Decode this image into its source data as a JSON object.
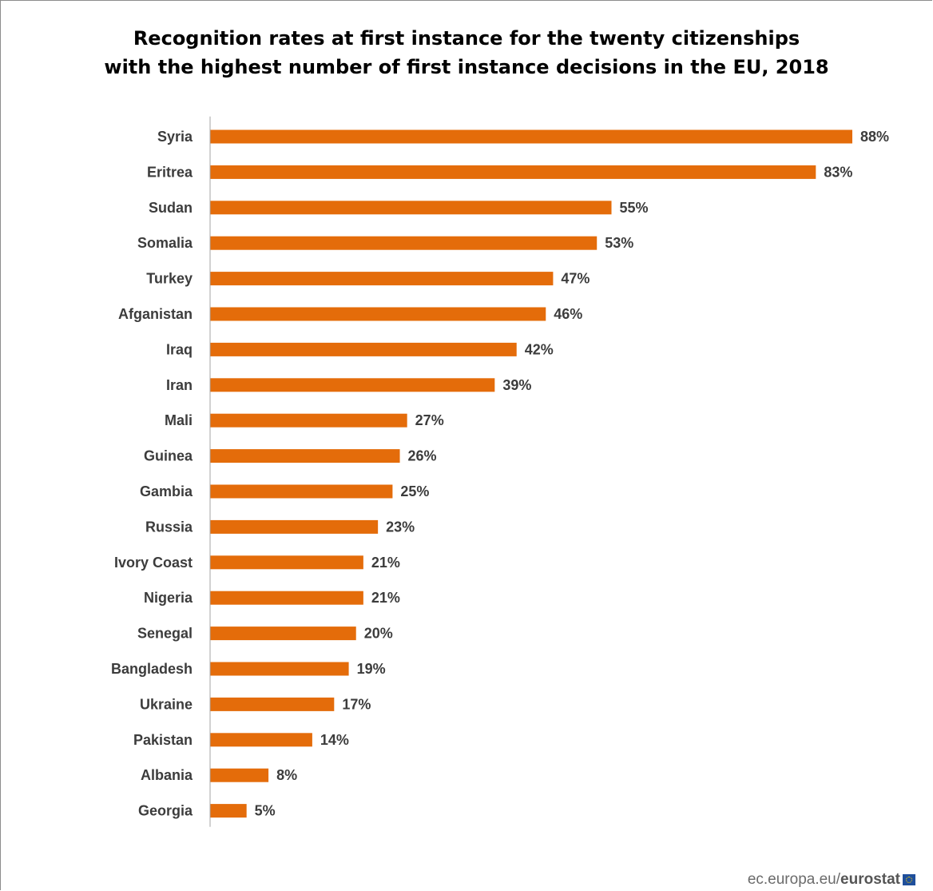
{
  "chart_data": {
    "type": "bar",
    "orientation": "horizontal",
    "title_lines": [
      "Recognition rates at first instance for the twenty citizenships",
      "with the highest number of first instance decisions in the EU, 2018"
    ],
    "categories": [
      "Syria",
      "Eritrea",
      "Sudan",
      "Somalia",
      "Turkey",
      "Afganistan",
      "Iraq",
      "Iran",
      "Mali",
      "Guinea",
      "Gambia",
      "Russia",
      "Ivory Coast",
      "Nigeria",
      "Senegal",
      "Bangladesh",
      "Ukraine",
      "Pakistan",
      "Albania",
      "Georgia"
    ],
    "values": [
      88,
      83,
      55,
      53,
      47,
      46,
      42,
      39,
      27,
      26,
      25,
      23,
      21,
      21,
      20,
      19,
      17,
      14,
      8,
      5
    ],
    "value_labels": [
      "88%",
      "83%",
      "55%",
      "53%",
      "47%",
      "46%",
      "42%",
      "39%",
      "27%",
      "26%",
      "25%",
      "23%",
      "21%",
      "21%",
      "20%",
      "19%",
      "17%",
      "14%",
      "8%",
      "5%"
    ],
    "xlim": [
      0,
      88
    ],
    "bar_color": "#E46C0A",
    "grid": false,
    "legend": "none"
  },
  "footer": {
    "site": "ec.europa.eu/",
    "brand": "eurostat"
  }
}
